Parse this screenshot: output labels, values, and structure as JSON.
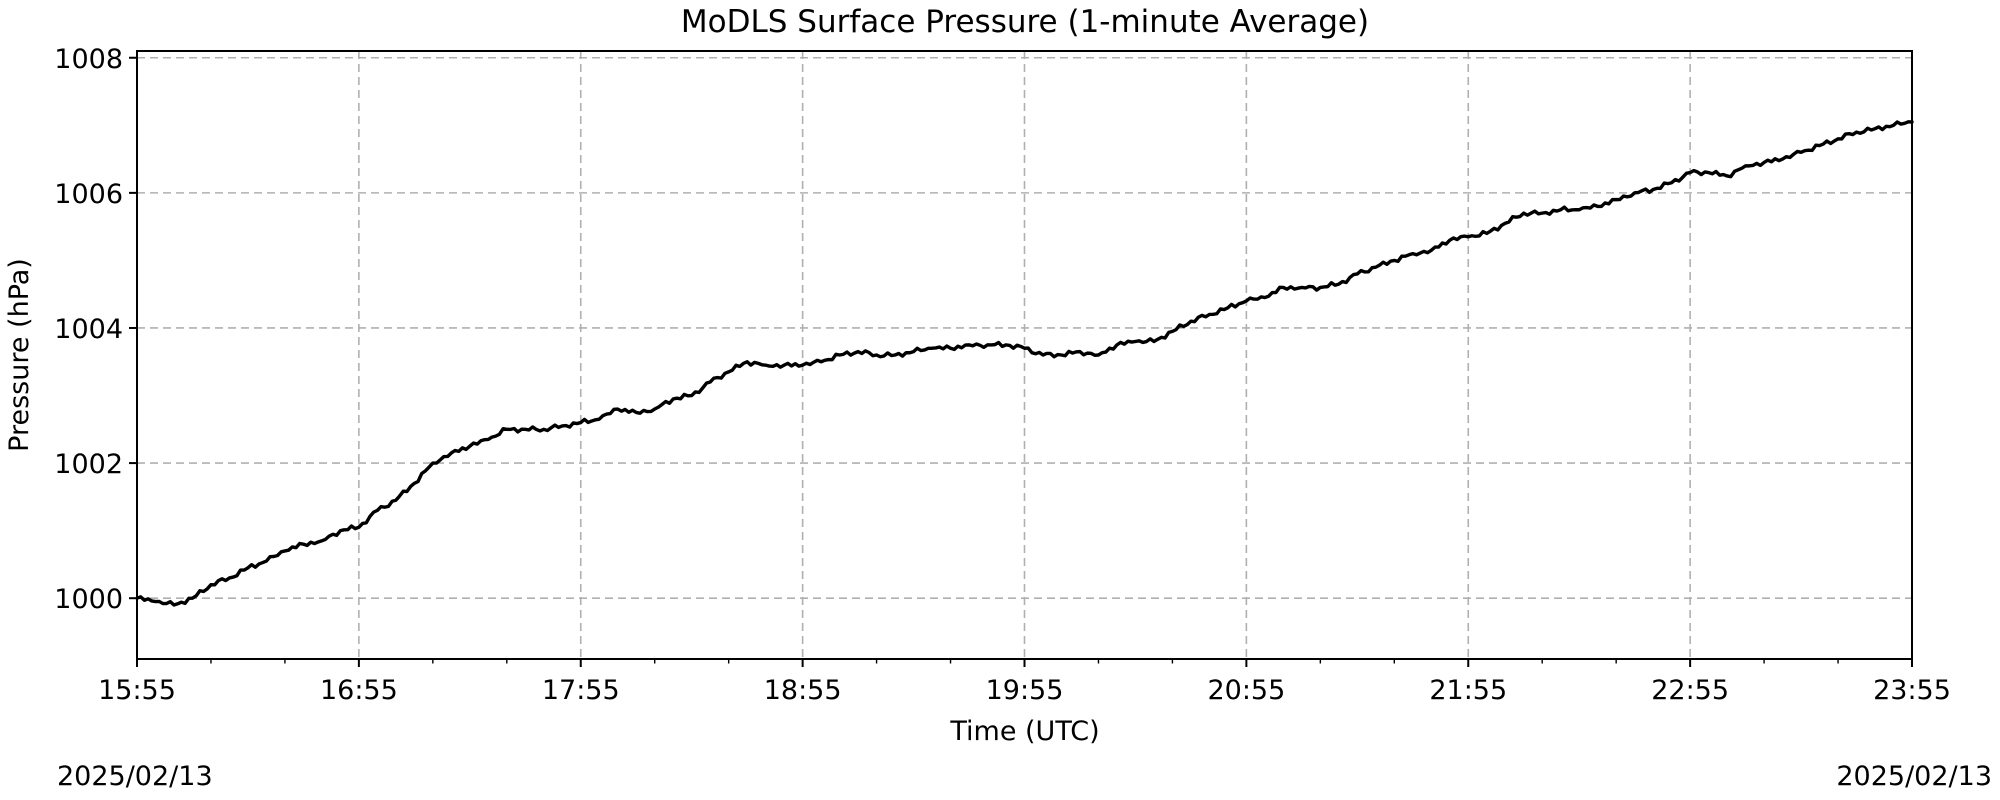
{
  "chart_data": {
    "type": "line",
    "title": "MoDLS Surface Pressure (1-minute Average)",
    "xlabel": "Time (UTC)",
    "ylabel": "Pressure (hPa)",
    "date_left": "2025/02/13",
    "date_right": "2025/02/13",
    "xlim": [
      "15:55",
      "23:55"
    ],
    "ylim": [
      999.1,
      1008.1
    ],
    "x_ticks": [
      "15:55",
      "16:55",
      "17:55",
      "18:55",
      "19:55",
      "20:55",
      "21:55",
      "22:55",
      "23:55"
    ],
    "y_ticks": [
      "1000",
      "1002",
      "1004",
      "1006",
      "1008"
    ],
    "y_tick_values": [
      1000,
      1002,
      1004,
      1006,
      1008
    ],
    "grid": true,
    "line_color": "#000000",
    "series": [
      {
        "x": [
          "15:55",
          "16:00",
          "16:05",
          "16:10",
          "16:15",
          "16:20",
          "16:25",
          "16:30",
          "16:35",
          "16:40",
          "16:45",
          "16:50",
          "16:55",
          "17:00",
          "17:05",
          "17:10",
          "17:15",
          "17:20",
          "17:25",
          "17:30",
          "17:35",
          "17:40",
          "17:45",
          "17:50",
          "17:55",
          "18:00",
          "18:05",
          "18:10",
          "18:15",
          "18:20",
          "18:25",
          "18:30",
          "18:35",
          "18:40",
          "18:45",
          "18:50",
          "18:55",
          "19:00",
          "19:05",
          "19:10",
          "19:15",
          "19:20",
          "19:25",
          "19:30",
          "19:35",
          "19:40",
          "19:45",
          "19:50",
          "19:55",
          "20:00",
          "20:05",
          "20:10",
          "20:15",
          "20:20",
          "20:25",
          "20:30",
          "20:35",
          "20:40",
          "20:45",
          "20:50",
          "20:55",
          "21:00",
          "21:05",
          "21:10",
          "21:15",
          "21:20",
          "21:25",
          "21:30",
          "21:35",
          "21:40",
          "21:45",
          "21:50",
          "21:55",
          "22:00",
          "22:05",
          "22:10",
          "22:15",
          "22:20",
          "22:25",
          "22:30",
          "22:35",
          "22:40",
          "22:45",
          "22:50",
          "22:55",
          "23:00",
          "23:05",
          "23:10",
          "23:15",
          "23:20",
          "23:25",
          "23:30",
          "23:35",
          "23:40",
          "23:45",
          "23:50",
          "23:55"
        ],
        "values": [
          1000.0,
          999.95,
          999.9,
          1000.0,
          1000.2,
          1000.3,
          1000.45,
          1000.55,
          1000.7,
          1000.8,
          1000.85,
          1001.0,
          1001.05,
          1001.3,
          1001.45,
          1001.7,
          1002.0,
          1002.15,
          1002.25,
          1002.35,
          1002.5,
          1002.5,
          1002.5,
          1002.55,
          1002.6,
          1002.65,
          1002.8,
          1002.75,
          1002.8,
          1002.95,
          1003.0,
          1003.2,
          1003.35,
          1003.5,
          1003.45,
          1003.45,
          1003.45,
          1003.5,
          1003.6,
          1003.65,
          1003.6,
          1003.6,
          1003.65,
          1003.7,
          1003.7,
          1003.75,
          1003.75,
          1003.75,
          1003.7,
          1003.6,
          1003.6,
          1003.65,
          1003.6,
          1003.75,
          1003.8,
          1003.8,
          1003.95,
          1004.1,
          1004.2,
          1004.3,
          1004.4,
          1004.45,
          1004.6,
          1004.6,
          1004.6,
          1004.65,
          1004.8,
          1004.9,
          1005.0,
          1005.1,
          1005.15,
          1005.3,
          1005.35,
          1005.4,
          1005.55,
          1005.7,
          1005.7,
          1005.75,
          1005.75,
          1005.8,
          1005.9,
          1006.0,
          1006.05,
          1006.15,
          1006.3,
          1006.3,
          1006.25,
          1006.4,
          1006.45,
          1006.5,
          1006.6,
          1006.7,
          1006.8,
          1006.9,
          1006.95,
          1007.0,
          1007.05
        ]
      }
    ]
  }
}
